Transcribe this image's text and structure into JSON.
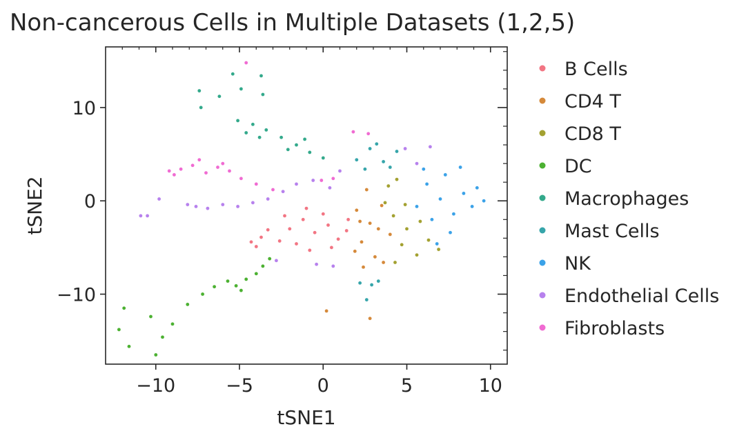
{
  "chart_data": {
    "type": "scatter",
    "title": "Non-cancerous Cells in Multiple Datasets (1,2,5)",
    "xlabel": "tSNE1",
    "ylabel": "tSNE2",
    "xlim": [
      -13,
      11
    ],
    "ylim": [
      -17.5,
      16.5
    ],
    "xticks": [
      {
        "value": -10,
        "label": "−10"
      },
      {
        "value": -5,
        "label": "−5"
      },
      {
        "value": 0,
        "label": "0"
      },
      {
        "value": 5,
        "label": "5"
      },
      {
        "value": 10,
        "label": "10"
      }
    ],
    "yticks": [
      {
        "value": 10,
        "label": "10"
      },
      {
        "value": 0,
        "label": "0"
      },
      {
        "value": -10,
        "label": "−10"
      }
    ],
    "grid": false,
    "legend_position": "outside-right",
    "series": [
      {
        "name": "B Cells",
        "color": "#f27583",
        "points": [
          [
            -1.2,
            -2.0
          ],
          [
            -0.5,
            -3.4
          ],
          [
            0.3,
            -2.6
          ],
          [
            0.9,
            -4.1
          ],
          [
            -1.6,
            -4.6
          ],
          [
            0.0,
            -1.4
          ],
          [
            -2.0,
            -3.0
          ],
          [
            1.4,
            -3.2
          ],
          [
            -0.8,
            -5.3
          ],
          [
            0.5,
            -5.0
          ],
          [
            -2.3,
            -1.6
          ],
          [
            -3.7,
            -3.9
          ],
          [
            -4.3,
            -4.4
          ],
          [
            -3.3,
            -3.1
          ],
          [
            -4.0,
            -4.9
          ],
          [
            -1.0,
            -0.8
          ],
          [
            1.5,
            -2.0
          ],
          [
            -2.6,
            -4.3
          ]
        ]
      },
      {
        "name": "CD4 T",
        "color": "#d5893a",
        "points": [
          [
            2.0,
            -1.0
          ],
          [
            2.8,
            -2.4
          ],
          [
            3.5,
            -0.5
          ],
          [
            2.3,
            -4.4
          ],
          [
            3.1,
            -6.0
          ],
          [
            4.0,
            -3.6
          ],
          [
            2.4,
            -7.1
          ],
          [
            3.6,
            -6.6
          ],
          [
            2.6,
            1.2
          ],
          [
            1.9,
            -5.4
          ],
          [
            3.3,
            -3.0
          ],
          [
            0.2,
            -11.8
          ],
          [
            2.8,
            -12.6
          ],
          [
            2.2,
            -2.2
          ]
        ]
      },
      {
        "name": "CD8 T",
        "color": "#a3a131",
        "points": [
          [
            4.2,
            -1.6
          ],
          [
            5.0,
            -3.0
          ],
          [
            4.7,
            -4.7
          ],
          [
            3.9,
            1.6
          ],
          [
            4.4,
            2.3
          ],
          [
            5.6,
            -5.8
          ],
          [
            6.3,
            -4.2
          ],
          [
            4.9,
            -0.4
          ],
          [
            5.8,
            -2.2
          ],
          [
            4.3,
            -6.6
          ],
          [
            6.9,
            -5.2
          ],
          [
            3.7,
            -0.2
          ]
        ]
      },
      {
        "name": "DC",
        "color": "#4cb132",
        "points": [
          [
            -4.6,
            -8.4
          ],
          [
            -4.0,
            -7.8
          ],
          [
            -5.2,
            -9.1
          ],
          [
            -3.6,
            -7.0
          ],
          [
            -5.7,
            -8.6
          ],
          [
            -4.9,
            -9.6
          ],
          [
            -6.5,
            -9.2
          ],
          [
            -7.2,
            -10.0
          ],
          [
            -8.1,
            -11.1
          ],
          [
            -9.0,
            -13.2
          ],
          [
            -10.3,
            -12.4
          ],
          [
            -11.9,
            -11.5
          ],
          [
            -12.2,
            -13.8
          ],
          [
            -11.6,
            -15.6
          ],
          [
            -10.0,
            -16.5
          ],
          [
            -9.6,
            -14.6
          ],
          [
            -3.2,
            -6.2
          ]
        ]
      },
      {
        "name": "Macrophages",
        "color": "#33a98b",
        "points": [
          [
            -5.1,
            8.6
          ],
          [
            -4.2,
            8.2
          ],
          [
            -3.4,
            7.6
          ],
          [
            -2.5,
            6.8
          ],
          [
            -1.6,
            6.0
          ],
          [
            -0.8,
            5.2
          ],
          [
            0.0,
            4.6
          ],
          [
            -3.8,
            6.8
          ],
          [
            -2.1,
            5.5
          ],
          [
            -4.6,
            7.3
          ],
          [
            -1.1,
            6.6
          ],
          [
            -6.2,
            11.2
          ],
          [
            -5.4,
            13.6
          ],
          [
            -4.9,
            12.0
          ],
          [
            -3.7,
            13.4
          ],
          [
            -7.3,
            10.0
          ],
          [
            -7.4,
            11.8
          ],
          [
            -3.6,
            11.4
          ]
        ]
      },
      {
        "name": "Mast Cells",
        "color": "#36a5aa",
        "points": [
          [
            2.0,
            4.4
          ],
          [
            2.8,
            5.6
          ],
          [
            3.6,
            4.2
          ],
          [
            4.4,
            5.3
          ],
          [
            2.5,
            3.4
          ],
          [
            3.2,
            6.1
          ],
          [
            4.0,
            3.6
          ],
          [
            2.2,
            -8.8
          ],
          [
            2.9,
            -9.0
          ],
          [
            3.3,
            -8.6
          ],
          [
            2.6,
            -10.6
          ]
        ]
      },
      {
        "name": "NK",
        "color": "#3ba2e8",
        "points": [
          [
            6.2,
            1.8
          ],
          [
            7.0,
            0.2
          ],
          [
            7.8,
            -1.4
          ],
          [
            6.5,
            -2.0
          ],
          [
            8.4,
            0.8
          ],
          [
            7.3,
            2.8
          ],
          [
            6.0,
            3.4
          ],
          [
            8.9,
            -0.6
          ],
          [
            7.6,
            -3.4
          ],
          [
            6.8,
            -4.6
          ],
          [
            9.2,
            1.4
          ],
          [
            5.6,
            -0.6
          ],
          [
            8.2,
            3.6
          ],
          [
            9.6,
            0.0
          ]
        ]
      },
      {
        "name": "Endothelial Cells",
        "color": "#b781ed",
        "points": [
          [
            -6.9,
            -0.8
          ],
          [
            -6.0,
            -0.4
          ],
          [
            -5.1,
            -0.6
          ],
          [
            -4.2,
            -0.2
          ],
          [
            -3.3,
            0.2
          ],
          [
            -7.6,
            -0.6
          ],
          [
            -8.1,
            -0.4
          ],
          [
            -2.4,
            1.0
          ],
          [
            -1.6,
            1.8
          ],
          [
            -0.6,
            2.2
          ],
          [
            0.4,
            1.4
          ],
          [
            1.0,
            3.2
          ],
          [
            -10.5,
            -1.6
          ],
          [
            -10.9,
            -1.6
          ],
          [
            -9.8,
            0.2
          ],
          [
            -2.8,
            -6.4
          ],
          [
            -0.4,
            -6.8
          ],
          [
            0.6,
            -7.0
          ],
          [
            5.6,
            4.0
          ],
          [
            4.9,
            5.6
          ],
          [
            6.4,
            5.8
          ]
        ]
      },
      {
        "name": "Fibroblasts",
        "color": "#f06bd2",
        "points": [
          [
            -8.5,
            3.4
          ],
          [
            -7.8,
            3.8
          ],
          [
            -7.0,
            3.0
          ],
          [
            -6.3,
            3.6
          ],
          [
            -5.6,
            3.2
          ],
          [
            -8.9,
            2.8
          ],
          [
            -7.4,
            4.4
          ],
          [
            -6.0,
            4.0
          ],
          [
            -4.9,
            2.4
          ],
          [
            -4.0,
            1.8
          ],
          [
            -3.0,
            1.2
          ],
          [
            -9.2,
            3.2
          ],
          [
            1.8,
            7.4
          ],
          [
            2.7,
            7.2
          ],
          [
            0.6,
            2.4
          ],
          [
            -0.1,
            2.2
          ],
          [
            -4.6,
            14.8
          ]
        ]
      }
    ]
  }
}
